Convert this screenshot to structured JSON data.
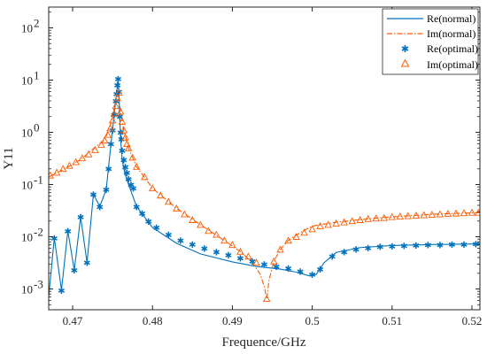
{
  "chart_data": {
    "type": "line",
    "xlabel": "Frequence/GHz",
    "ylabel": "Y11",
    "xlim": [
      0.467,
      0.521
    ],
    "ylim": [
      0.0004,
      250
    ],
    "yscale": "log",
    "x_ticks": [
      0.47,
      0.48,
      0.49,
      0.5,
      0.51,
      0.52
    ],
    "x_tick_labels": [
      "0.47",
      "0.48",
      "0.49",
      "0.5",
      "0.51",
      "0.52"
    ],
    "y_ticks": [
      0.001,
      0.01,
      0.1,
      1,
      10,
      100
    ],
    "y_tick_labels": [
      {
        "base": "10",
        "exp": "-3"
      },
      {
        "base": "10",
        "exp": "-2"
      },
      {
        "base": "10",
        "exp": "-1"
      },
      {
        "base": "10",
        "exp": "0"
      },
      {
        "base": "10",
        "exp": "1"
      },
      {
        "base": "10",
        "exp": "2"
      }
    ],
    "grid": false,
    "legend_position": "top-right",
    "colors": {
      "re": "#0072BD",
      "im": "#FF5A00",
      "axis": "#262626"
    },
    "series": [
      {
        "name": "Re(normal)",
        "style": "solid-line",
        "x": [
          0.467,
          0.4677,
          0.4686,
          0.4694,
          0.4702,
          0.471,
          0.4718,
          0.4726,
          0.4734,
          0.4742,
          0.4748,
          0.4752,
          0.4755,
          0.4757,
          0.4759,
          0.476,
          0.4762,
          0.4765,
          0.477,
          0.478,
          0.48,
          0.483,
          0.486,
          0.49,
          0.493,
          0.496,
          0.498,
          0.4995,
          0.5005,
          0.5015,
          0.503,
          0.506,
          0.51,
          0.515,
          0.521
        ],
        "y": [
          0.0007,
          0.0095,
          0.00095,
          0.013,
          0.0023,
          0.024,
          0.0032,
          0.065,
          0.038,
          0.08,
          0.6,
          2.2,
          5.5,
          10.5,
          2.0,
          0.75,
          0.3,
          0.17,
          0.1,
          0.038,
          0.015,
          0.0075,
          0.0047,
          0.0033,
          0.0027,
          0.0024,
          0.0021,
          0.0018,
          0.0019,
          0.0032,
          0.005,
          0.0062,
          0.0068,
          0.0071,
          0.0073
        ]
      },
      {
        "name": "Im(normal)",
        "style": "dash-dot-line",
        "x": [
          0.467,
          0.469,
          0.471,
          0.473,
          0.474,
          0.4748,
          0.4753,
          0.4757,
          0.476,
          0.4764,
          0.477,
          0.478,
          0.48,
          0.483,
          0.486,
          0.489,
          0.491,
          0.4925,
          0.4935,
          0.494,
          0.4943,
          0.4946,
          0.4952,
          0.496,
          0.497,
          0.4985,
          0.5,
          0.503,
          0.507,
          0.51,
          0.515,
          0.521
        ],
        "y": [
          0.14,
          0.2,
          0.3,
          0.55,
          0.7,
          1.5,
          3.5,
          6.0,
          2.5,
          1.1,
          0.5,
          0.22,
          0.085,
          0.035,
          0.017,
          0.0085,
          0.0052,
          0.0032,
          0.0019,
          0.0011,
          0.00065,
          0.0015,
          0.0034,
          0.0057,
          0.0085,
          0.012,
          0.016,
          0.019,
          0.022,
          0.024,
          0.027,
          0.029
        ]
      },
      {
        "name": "Re(optimal)",
        "style": "star-markers",
        "x": [
          0.4677,
          0.4686,
          0.4694,
          0.4702,
          0.471,
          0.4718,
          0.4726,
          0.4734,
          0.4742,
          0.4745,
          0.4748,
          0.475,
          0.4752,
          0.4754,
          0.4755,
          0.4756,
          0.4757,
          0.4758,
          0.4759,
          0.476,
          0.4761,
          0.4762,
          0.4764,
          0.4766,
          0.4768,
          0.477,
          0.4773,
          0.4776,
          0.478,
          0.4787,
          0.4795,
          0.4805,
          0.482,
          0.4835,
          0.485,
          0.4865,
          0.488,
          0.4895,
          0.491,
          0.4925,
          0.494,
          0.4955,
          0.497,
          0.4985,
          0.5,
          0.501,
          0.5025,
          0.504,
          0.5055,
          0.507,
          0.5085,
          0.51,
          0.5115,
          0.513,
          0.5145,
          0.516,
          0.5175,
          0.519,
          0.5205
        ],
        "y": [
          0.0095,
          0.00095,
          0.013,
          0.0023,
          0.024,
          0.0032,
          0.065,
          0.038,
          0.08,
          0.2,
          0.6,
          1.1,
          2.2,
          4.0,
          5.5,
          8.0,
          10.5,
          6.0,
          2.0,
          1.0,
          0.75,
          0.45,
          0.3,
          0.22,
          0.17,
          0.13,
          0.1,
          0.085,
          0.038,
          0.028,
          0.02,
          0.015,
          0.011,
          0.0085,
          0.0072,
          0.006,
          0.0052,
          0.0045,
          0.0039,
          0.0034,
          0.003,
          0.0027,
          0.0025,
          0.0022,
          0.0019,
          0.0024,
          0.0042,
          0.0052,
          0.0058,
          0.0062,
          0.0065,
          0.0067,
          0.0068,
          0.0069,
          0.007,
          0.0071,
          0.0072,
          0.0072,
          0.0073
        ]
      },
      {
        "name": "Im(optimal)",
        "style": "triangle-markers",
        "x": [
          0.4672,
          0.468,
          0.4688,
          0.4696,
          0.4704,
          0.4712,
          0.472,
          0.4728,
          0.4736,
          0.474,
          0.4744,
          0.4747,
          0.475,
          0.4752,
          0.4754,
          0.4756,
          0.4758,
          0.476,
          0.4762,
          0.4764,
          0.4766,
          0.4768,
          0.477,
          0.4775,
          0.478,
          0.479,
          0.48,
          0.481,
          0.482,
          0.483,
          0.484,
          0.485,
          0.486,
          0.487,
          0.488,
          0.489,
          0.49,
          0.491,
          0.492,
          0.493,
          0.4943,
          0.4952,
          0.496,
          0.497,
          0.498,
          0.499,
          0.5,
          0.501,
          0.502,
          0.503,
          0.504,
          0.505,
          0.506,
          0.507,
          0.508,
          0.509,
          0.51,
          0.511,
          0.512,
          0.513,
          0.514,
          0.515,
          0.516,
          0.517,
          0.518,
          0.519,
          0.52,
          0.5208
        ],
        "y": [
          0.15,
          0.17,
          0.2,
          0.23,
          0.27,
          0.32,
          0.38,
          0.46,
          0.58,
          0.7,
          0.9,
          1.2,
          1.7,
          2.3,
          3.2,
          4.5,
          5.8,
          2.5,
          1.6,
          1.1,
          0.8,
          0.6,
          0.5,
          0.33,
          0.22,
          0.14,
          0.085,
          0.062,
          0.047,
          0.035,
          0.027,
          0.021,
          0.017,
          0.013,
          0.011,
          0.0085,
          0.007,
          0.0052,
          0.0042,
          0.0032,
          0.00065,
          0.0034,
          0.0057,
          0.0085,
          0.01,
          0.012,
          0.014,
          0.016,
          0.017,
          0.018,
          0.019,
          0.02,
          0.021,
          0.022,
          0.0225,
          0.023,
          0.024,
          0.0245,
          0.025,
          0.0255,
          0.026,
          0.0265,
          0.027,
          0.0275,
          0.028,
          0.0285,
          0.029,
          0.029
        ]
      }
    ]
  }
}
